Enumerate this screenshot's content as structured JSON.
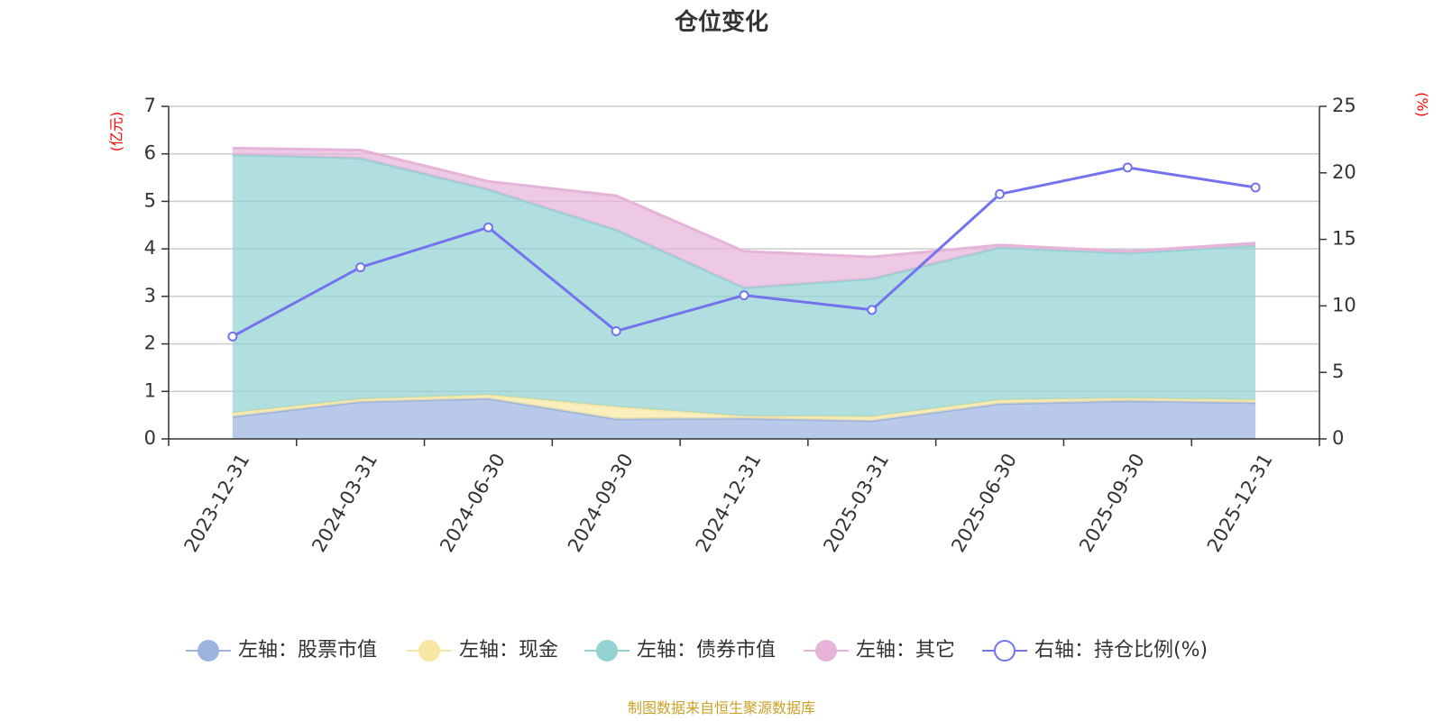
{
  "chart_data": {
    "type": "area",
    "title": "仓位变化",
    "left_axis_unit": "(亿元)",
    "right_axis_unit": "(%)",
    "categories": [
      "2023-12-31",
      "2024-03-31",
      "2024-06-30",
      "2024-09-30",
      "2024-12-31",
      "2025-03-31",
      "2025-06-30",
      "2025-09-30",
      "2025-12-31"
    ],
    "left_ylim": [
      0,
      7
    ],
    "left_yticks": [
      "0",
      "1",
      "2",
      "3",
      "4",
      "5",
      "6",
      "7"
    ],
    "right_ylim": [
      0,
      25
    ],
    "right_yticks": [
      "0",
      "5",
      "10",
      "15",
      "20",
      "25"
    ],
    "stacked_series": [
      {
        "name": "左轴：股票市值",
        "color": "#9db4e0",
        "values": [
          0.47,
          0.78,
          0.85,
          0.42,
          0.43,
          0.38,
          0.74,
          0.8,
          0.76
        ]
      },
      {
        "name": "左轴：现金",
        "color": "#f7e7a2",
        "values": [
          0.08,
          0.06,
          0.08,
          0.26,
          0.05,
          0.09,
          0.08,
          0.06,
          0.06
        ]
      },
      {
        "name": "左轴：债券市值",
        "color": "#93d2d3",
        "values": [
          5.43,
          5.07,
          4.32,
          3.72,
          2.7,
          2.9,
          3.21,
          3.05,
          3.25
        ]
      },
      {
        "name": "左轴：其它",
        "color": "#e6b4d9",
        "values": [
          0.14,
          0.17,
          0.17,
          0.72,
          0.77,
          0.46,
          0.05,
          0.04,
          0.05
        ]
      }
    ],
    "line_series": {
      "name": "右轴：持仓比例(%)",
      "color": "#7373ee",
      "values": [
        7.7,
        12.9,
        15.9,
        8.1,
        10.8,
        9.7,
        18.4,
        20.4,
        18.9
      ]
    },
    "source": "制图数据来自恒生聚源数据库"
  }
}
